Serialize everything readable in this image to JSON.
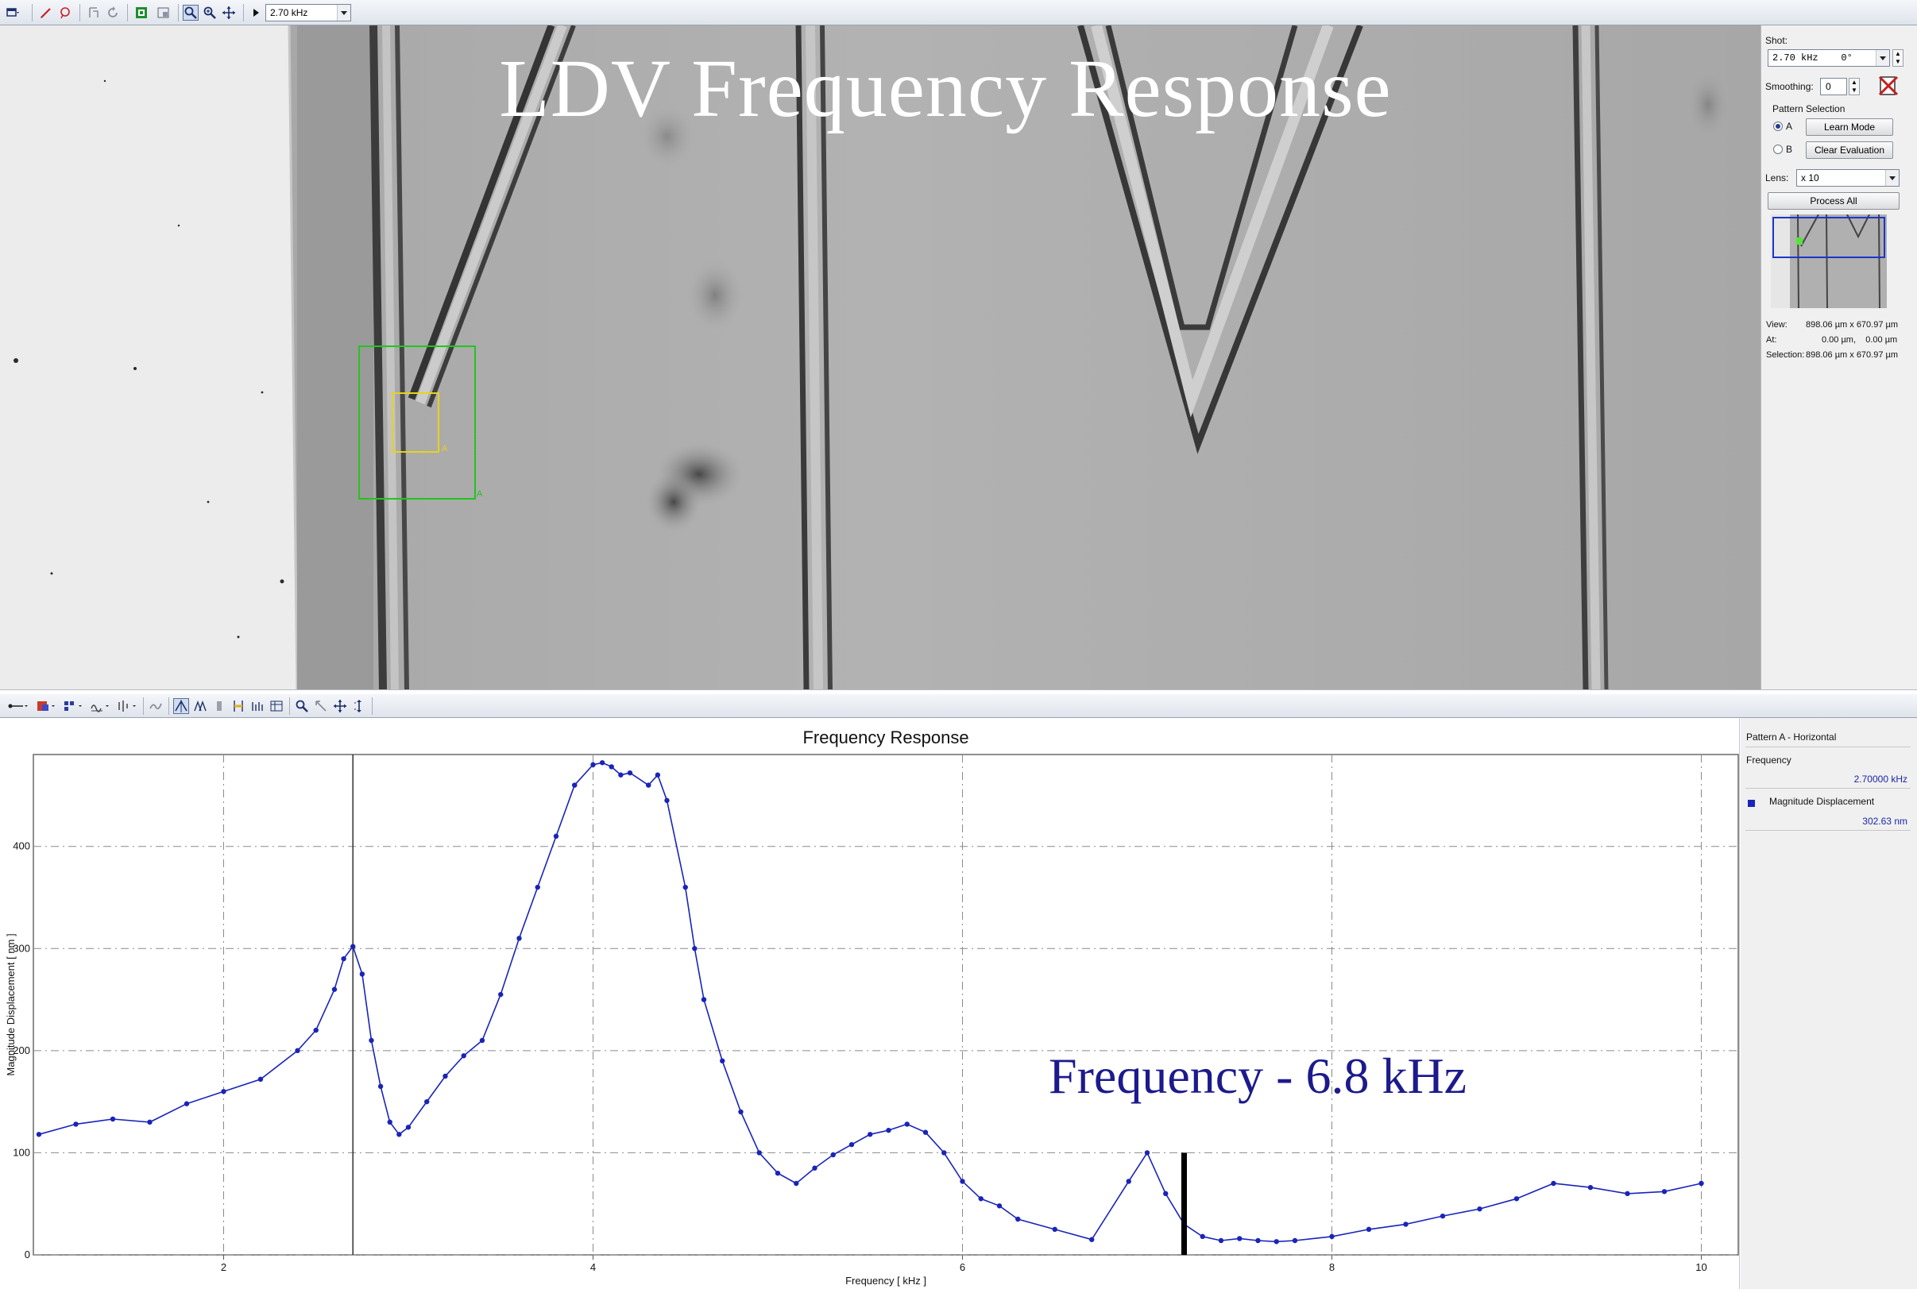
{
  "top_toolbar": {
    "frequency_select": "2.70 kHz",
    "icons": [
      "window-menu-icon",
      "pencil-icon",
      "lasso-icon",
      "pattern-tool-icon",
      "rotate-icon",
      "green-frame-icon",
      "region-icon",
      "zoom-icon",
      "zoom-plus-icon",
      "pan-icon",
      "play-icon"
    ]
  },
  "image_view": {
    "overlay_title": "LDV Frequency Response",
    "roi_label_inner": "A",
    "roi_label_outer": "A"
  },
  "side_panel": {
    "shot_label": "Shot:",
    "shot_value": "2.70 kHz    0°",
    "smoothing_label": "Smoothing:",
    "smoothing_value": "0",
    "pattern_selection_label": "Pattern Selection",
    "radio_a_label": "A",
    "radio_b_label": "B",
    "learn_mode_label": "Learn Mode",
    "clear_evaluation_label": "Clear Evaluation",
    "lens_label": "Lens:",
    "lens_value": "x 10",
    "process_all_label": "Process All",
    "view_label": "View:",
    "view_value": "898.06 µm x 670.97 µm",
    "at_label": "At:",
    "at_value": "0.00 µm,    0.00 µm",
    "selection_label": "Selection:",
    "selection_value": "898.06 µm x 670.97 µm"
  },
  "chart_legend": {
    "title": "Pattern A - Horizontal",
    "frequency_label": "Frequency",
    "frequency_value": "2.70000 kHz",
    "series_label": "Magnitude Displacement",
    "series_value": "302.63 nm"
  },
  "chart_annotation": "Frequency  - 6.8 kHz",
  "colors": {
    "series": "#1a24b8",
    "annotation": "#1c1a8c",
    "roi_outer": "#22c41f",
    "roi_inner": "#e8d21a"
  },
  "chart_data": {
    "type": "line",
    "title": "Frequency Response",
    "xlabel": "Frequency [ kHz ]",
    "ylabel": "Magnitude Displacement [ nm ]",
    "xlim": [
      0.97,
      10.2
    ],
    "ylim": [
      0,
      490
    ],
    "x_ticks": [
      2,
      4,
      6,
      8,
      10
    ],
    "y_ticks": [
      0,
      100,
      200,
      300,
      400
    ],
    "grid": true,
    "cursor_x": 2.7,
    "marker_x": 7.2,
    "series": [
      {
        "name": "Magnitude Displacement",
        "color": "#1a24b8",
        "x": [
          1.0,
          1.2,
          1.4,
          1.6,
          1.8,
          2.0,
          2.2,
          2.4,
          2.5,
          2.6,
          2.65,
          2.7,
          2.75,
          2.8,
          2.85,
          2.9,
          2.95,
          3.0,
          3.1,
          3.2,
          3.3,
          3.4,
          3.5,
          3.6,
          3.7,
          3.8,
          3.9,
          4.0,
          4.05,
          4.1,
          4.15,
          4.2,
          4.3,
          4.35,
          4.4,
          4.5,
          4.55,
          4.6,
          4.7,
          4.8,
          4.9,
          5.0,
          5.1,
          5.2,
          5.3,
          5.4,
          5.5,
          5.6,
          5.7,
          5.8,
          5.9,
          6.0,
          6.1,
          6.2,
          6.3,
          6.5,
          6.7,
          6.9,
          7.0,
          7.1,
          7.2,
          7.3,
          7.4,
          7.5,
          7.6,
          7.7,
          7.8,
          8.0,
          8.2,
          8.4,
          8.6,
          8.8,
          9.0,
          9.2,
          9.4,
          9.6,
          9.8,
          10.0
        ],
        "values": [
          118,
          128,
          133,
          130,
          148,
          160,
          172,
          200,
          220,
          260,
          290,
          302,
          275,
          210,
          165,
          130,
          118,
          125,
          150,
          175,
          195,
          210,
          255,
          310,
          360,
          410,
          460,
          480,
          482,
          478,
          470,
          472,
          460,
          470,
          445,
          360,
          300,
          250,
          190,
          140,
          100,
          80,
          70,
          85,
          98,
          108,
          118,
          122,
          128,
          120,
          100,
          72,
          55,
          48,
          35,
          25,
          15,
          72,
          100,
          60,
          30,
          18,
          14,
          16,
          14,
          13,
          14,
          18,
          25,
          30,
          38,
          45,
          55,
          70,
          66,
          60,
          62,
          70
        ]
      }
    ]
  }
}
